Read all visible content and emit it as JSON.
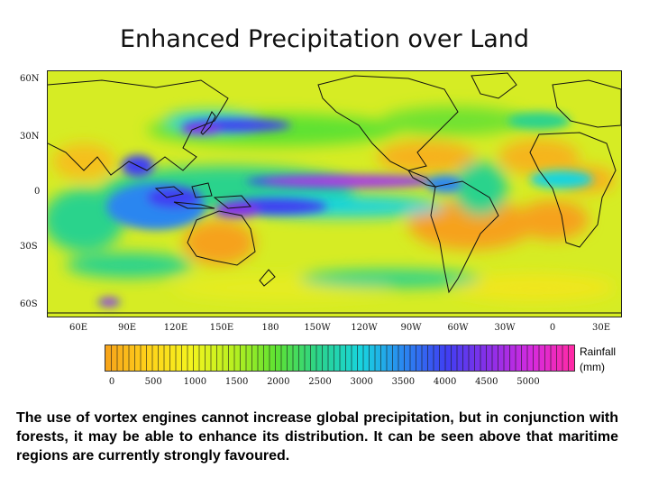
{
  "title": "Enhanced Precipitation over Land",
  "map": {
    "lat_labels": [
      "60N",
      "30N",
      "0",
      "30S",
      "60S"
    ],
    "lon_labels": [
      "60E",
      "90E",
      "120E",
      "150E",
      "180",
      "150W",
      "120W",
      "90W",
      "60W",
      "30W",
      "0",
      "30E"
    ]
  },
  "colorbar": {
    "unit_label": [
      "Rainfall",
      "(mm)"
    ],
    "tick_labels": [
      "0",
      "500",
      "1000",
      "1500",
      "2000",
      "2500",
      "3000",
      "3500",
      "4000",
      "4500",
      "5000"
    ],
    "range": [
      0,
      5000
    ],
    "colors": [
      "#f6a21a",
      "#ffd21a",
      "#f4f41e",
      "#b8f020",
      "#5ee232",
      "#2ad38c",
      "#18d4df",
      "#2a86f0",
      "#3f3ff2",
      "#8a2fe8",
      "#d62adf",
      "#ff2aa4"
    ]
  },
  "caption": "The use of vortex engines cannot increase global precipitation, but in conjunction with forests, it may be able to enhance its distribution. It can be seen above that maritime regions are currently strongly favoured."
}
